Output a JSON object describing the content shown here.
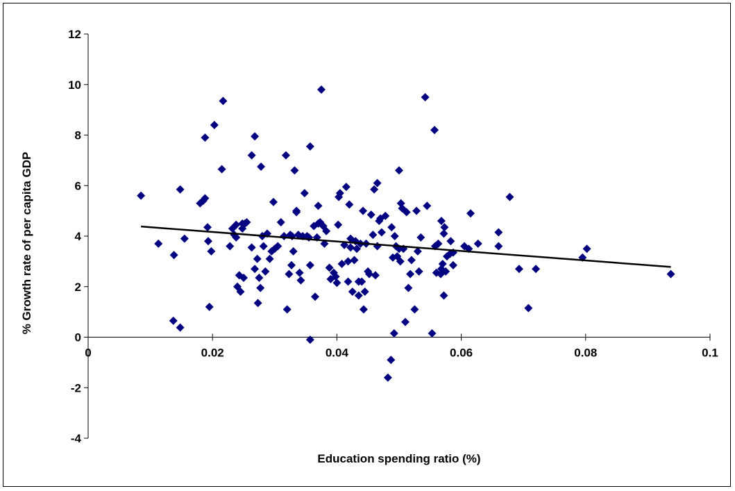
{
  "chart_data": {
    "type": "scatter",
    "title": "",
    "xlabel": "Education spending ratio (%)",
    "ylabel": "% Growth rate of per capita GDP",
    "xlim": [
      0,
      0.1
    ],
    "ylim": [
      -4,
      12
    ],
    "xticks": [
      0,
      0.02,
      0.04,
      0.06,
      0.08,
      0.1
    ],
    "xtick_labels": [
      "0",
      "0.02",
      "0.04",
      "0.06",
      "0.08",
      "0.1"
    ],
    "yticks": [
      -4,
      -2,
      0,
      2,
      4,
      6,
      8,
      10,
      12
    ],
    "ytick_labels": [
      "-4",
      "-2",
      "0",
      "2",
      "4",
      "6",
      "8",
      "10",
      "12"
    ],
    "grid": false,
    "legend": "none",
    "marker_color": "#000080",
    "trendline_color": "#000000",
    "series": [
      {
        "marker": "diamond",
        "points": [
          [
            0.0085,
            5.6
          ],
          [
            0.0113,
            3.7
          ],
          [
            0.0138,
            3.25
          ],
          [
            0.0137,
            0.65
          ],
          [
            0.0148,
            0.38
          ],
          [
            0.0148,
            5.85
          ],
          [
            0.0155,
            3.9
          ],
          [
            0.018,
            5.3
          ],
          [
            0.0185,
            5.4
          ],
          [
            0.0188,
            5.5
          ],
          [
            0.0188,
            7.9
          ],
          [
            0.0192,
            4.35
          ],
          [
            0.0193,
            3.8
          ],
          [
            0.0195,
            1.2
          ],
          [
            0.0198,
            3.4
          ],
          [
            0.0203,
            8.4
          ],
          [
            0.0215,
            6.65
          ],
          [
            0.0217,
            9.35
          ],
          [
            0.0228,
            3.6
          ],
          [
            0.0232,
            4.3
          ],
          [
            0.0235,
            4.05
          ],
          [
            0.0238,
            3.95
          ],
          [
            0.0238,
            4.45
          ],
          [
            0.024,
            2.0
          ],
          [
            0.0243,
            2.45
          ],
          [
            0.0245,
            1.8
          ],
          [
            0.0248,
            4.3
          ],
          [
            0.0248,
            4.5
          ],
          [
            0.025,
            2.35
          ],
          [
            0.0252,
            4.5
          ],
          [
            0.0255,
            4.55
          ],
          [
            0.0263,
            7.2
          ],
          [
            0.0263,
            3.55
          ],
          [
            0.0268,
            7.95
          ],
          [
            0.0268,
            2.7
          ],
          [
            0.0272,
            3.1
          ],
          [
            0.0273,
            1.35
          ],
          [
            0.0275,
            2.35
          ],
          [
            0.0277,
            1.95
          ],
          [
            0.0278,
            6.75
          ],
          [
            0.028,
            4.0
          ],
          [
            0.0282,
            3.6
          ],
          [
            0.0285,
            2.6
          ],
          [
            0.0288,
            4.1
          ],
          [
            0.0292,
            3.1
          ],
          [
            0.0295,
            3.4
          ],
          [
            0.0298,
            5.35
          ],
          [
            0.03,
            3.5
          ],
          [
            0.0305,
            3.6
          ],
          [
            0.031,
            4.55
          ],
          [
            0.0315,
            4.0
          ],
          [
            0.0318,
            7.2
          ],
          [
            0.032,
            1.1
          ],
          [
            0.0323,
            2.5
          ],
          [
            0.0325,
            4.05
          ],
          [
            0.0327,
            2.85
          ],
          [
            0.0328,
            4.0
          ],
          [
            0.033,
            3.4
          ],
          [
            0.0332,
            6.6
          ],
          [
            0.0335,
            4.95
          ],
          [
            0.0335,
            5.0
          ],
          [
            0.0338,
            4.05
          ],
          [
            0.034,
            2.55
          ],
          [
            0.0342,
            2.25
          ],
          [
            0.0345,
            4.0
          ],
          [
            0.0348,
            5.7
          ],
          [
            0.0352,
            4.0
          ],
          [
            0.0355,
            3.95
          ],
          [
            0.0357,
            7.55
          ],
          [
            0.0357,
            2.85
          ],
          [
            0.0357,
            -0.1
          ],
          [
            0.0363,
            4.4
          ],
          [
            0.0365,
            1.6
          ],
          [
            0.0368,
            3.95
          ],
          [
            0.037,
            4.5
          ],
          [
            0.037,
            5.2
          ],
          [
            0.0373,
            4.55
          ],
          [
            0.0375,
            9.8
          ],
          [
            0.0378,
            4.4
          ],
          [
            0.038,
            3.7
          ],
          [
            0.0383,
            4.2
          ],
          [
            0.0388,
            2.75
          ],
          [
            0.039,
            2.3
          ],
          [
            0.0395,
            2.55
          ],
          [
            0.0398,
            2.4
          ],
          [
            0.04,
            2.15
          ],
          [
            0.0402,
            4.45
          ],
          [
            0.0403,
            5.55
          ],
          [
            0.0405,
            5.7
          ],
          [
            0.0408,
            2.9
          ],
          [
            0.0412,
            3.65
          ],
          [
            0.0415,
            5.95
          ],
          [
            0.0418,
            3.0
          ],
          [
            0.0418,
            2.2
          ],
          [
            0.042,
            5.25
          ],
          [
            0.0422,
            3.9
          ],
          [
            0.0422,
            3.55
          ],
          [
            0.0425,
            1.8
          ],
          [
            0.0428,
            3.05
          ],
          [
            0.043,
            3.8
          ],
          [
            0.0432,
            3.5
          ],
          [
            0.0435,
            2.2
          ],
          [
            0.0435,
            1.65
          ],
          [
            0.0438,
            3.7
          ],
          [
            0.044,
            2.2
          ],
          [
            0.0442,
            5.0
          ],
          [
            0.0443,
            1.1
          ],
          [
            0.0445,
            1.8
          ],
          [
            0.0447,
            3.7
          ],
          [
            0.045,
            2.6
          ],
          [
            0.0452,
            2.5
          ],
          [
            0.0455,
            4.85
          ],
          [
            0.0458,
            4.05
          ],
          [
            0.046,
            5.85
          ],
          [
            0.0462,
            2.45
          ],
          [
            0.0465,
            3.6
          ],
          [
            0.0465,
            6.1
          ],
          [
            0.0468,
            4.6
          ],
          [
            0.047,
            4.7
          ],
          [
            0.0472,
            4.15
          ],
          [
            0.0478,
            4.8
          ],
          [
            0.0482,
            -1.6
          ],
          [
            0.0487,
            -0.9
          ],
          [
            0.0488,
            4.35
          ],
          [
            0.049,
            3.15
          ],
          [
            0.0492,
            0.15
          ],
          [
            0.0493,
            4.0
          ],
          [
            0.0495,
            3.6
          ],
          [
            0.0497,
            3.2
          ],
          [
            0.05,
            6.6
          ],
          [
            0.05,
            3.5
          ],
          [
            0.0502,
            3.0
          ],
          [
            0.0503,
            5.3
          ],
          [
            0.0505,
            5.1
          ],
          [
            0.0507,
            3.5
          ],
          [
            0.051,
            0.6
          ],
          [
            0.0512,
            4.95
          ],
          [
            0.0515,
            1.95
          ],
          [
            0.0518,
            2.5
          ],
          [
            0.052,
            3.05
          ],
          [
            0.0525,
            1.1
          ],
          [
            0.0528,
            5.0
          ],
          [
            0.053,
            3.4
          ],
          [
            0.0532,
            2.6
          ],
          [
            0.0535,
            3.95
          ],
          [
            0.0542,
            9.5
          ],
          [
            0.0545,
            5.2
          ],
          [
            0.0553,
            0.15
          ],
          [
            0.0557,
            8.2
          ],
          [
            0.0558,
            3.6
          ],
          [
            0.056,
            2.55
          ],
          [
            0.0563,
            3.7
          ],
          [
            0.0567,
            2.5
          ],
          [
            0.0568,
            4.6
          ],
          [
            0.0568,
            2.7
          ],
          [
            0.057,
            2.9
          ],
          [
            0.0572,
            1.65
          ],
          [
            0.0572,
            4.1
          ],
          [
            0.0573,
            4.35
          ],
          [
            0.0575,
            2.6
          ],
          [
            0.0577,
            3.2
          ],
          [
            0.0582,
            3.3
          ],
          [
            0.0583,
            3.8
          ],
          [
            0.0587,
            3.35
          ],
          [
            0.0587,
            2.85
          ],
          [
            0.0605,
            3.6
          ],
          [
            0.0612,
            3.5
          ],
          [
            0.0615,
            4.9
          ],
          [
            0.0627,
            3.7
          ],
          [
            0.066,
            3.6
          ],
          [
            0.066,
            4.15
          ],
          [
            0.0678,
            5.55
          ],
          [
            0.0693,
            2.7
          ],
          [
            0.0708,
            1.15
          ],
          [
            0.072,
            2.7
          ],
          [
            0.0795,
            3.15
          ],
          [
            0.0802,
            3.5
          ],
          [
            0.0937,
            2.5
          ]
        ]
      }
    ],
    "trendline": {
      "type": "linear",
      "x": [
        0.0085,
        0.0937
      ],
      "y": [
        4.38,
        2.78
      ]
    }
  }
}
